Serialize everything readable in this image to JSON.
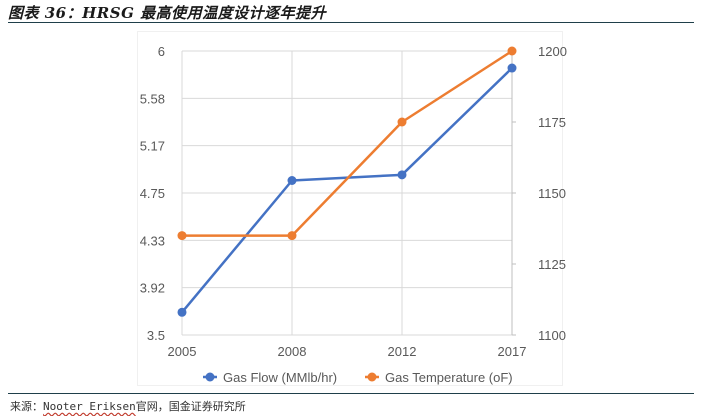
{
  "header": {
    "title": "图表 36：HRSG 最高使用温度设计逐年提升"
  },
  "footer": {
    "source_prefix": "来源：",
    "source_company": "Nooter Eriksen",
    "source_suffix": "官网，国金证券研究所"
  },
  "colors": {
    "gas_flow": "#4472C4",
    "gas_temperature": "#ED7D31",
    "gridline": "#d9d9d9",
    "rule": "#1f3f4a"
  },
  "chart_data": {
    "type": "line",
    "title": "图表 36：HRSG 最高使用温度设计逐年提升",
    "categories": [
      "2005",
      "2008",
      "2012",
      "2017"
    ],
    "series": [
      {
        "name": "Gas Flow (MMlb/hr)",
        "axis": "left",
        "color": "#4472C4",
        "values": [
          3.7,
          4.86,
          4.91,
          5.85
        ]
      },
      {
        "name": "Gas Temperature (oF)",
        "axis": "right",
        "color": "#ED7D31",
        "values": [
          1135,
          1135,
          1175,
          1200
        ]
      }
    ],
    "left_axis": {
      "ylim": [
        3.5,
        6
      ],
      "ticks": [
        "6",
        "5.58",
        "5.17",
        "4.75",
        "4.33",
        "3.92",
        "3.5"
      ]
    },
    "right_axis": {
      "ylim": [
        1100,
        1200
      ],
      "ticks": [
        "1200",
        "1175",
        "1150",
        "1125",
        "1100"
      ]
    },
    "xlabel": "",
    "ylabel": "",
    "grid": true,
    "legend_position": "bottom",
    "legend": [
      "Gas Flow (MMlb/hr)",
      "Gas Temperature (oF)"
    ]
  }
}
